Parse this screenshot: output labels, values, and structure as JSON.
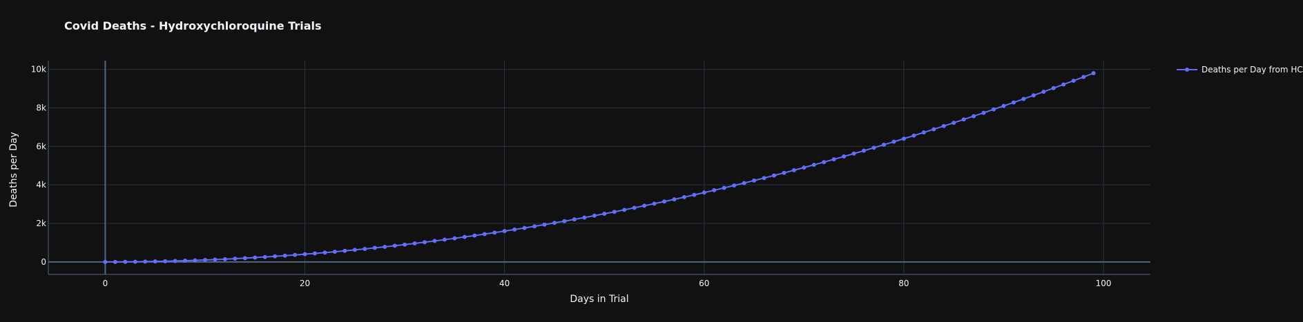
{
  "chart_data": {
    "type": "line",
    "title": "Covid Deaths - Hydroxychloroquine Trials",
    "xlabel": "Days in Trial",
    "ylabel": "Deaths per Day",
    "xlim": [
      -5.7,
      104.7
    ],
    "ylim": [
      -650,
      10450
    ],
    "x_ticks": [
      0,
      20,
      40,
      60,
      80,
      100
    ],
    "x_tick_labels": [
      "0",
      "20",
      "40",
      "60",
      "80",
      "100"
    ],
    "y_ticks": [
      0,
      2000,
      4000,
      6000,
      8000,
      10000
    ],
    "y_tick_labels": [
      "0",
      "2k",
      "4k",
      "6k",
      "8k",
      "10k"
    ],
    "grid": true,
    "legend_position": "top-right",
    "series": [
      {
        "name": "Deaths per Day from HCQ",
        "color": "#636efa",
        "mode": "lines+markers",
        "x": [
          0,
          1,
          2,
          3,
          4,
          5,
          6,
          7,
          8,
          9,
          10,
          11,
          12,
          13,
          14,
          15,
          16,
          17,
          18,
          19,
          20,
          21,
          22,
          23,
          24,
          25,
          26,
          27,
          28,
          29,
          30,
          31,
          32,
          33,
          34,
          35,
          36,
          37,
          38,
          39,
          40,
          41,
          42,
          43,
          44,
          45,
          46,
          47,
          48,
          49,
          50,
          51,
          52,
          53,
          54,
          55,
          56,
          57,
          58,
          59,
          60,
          61,
          62,
          63,
          64,
          65,
          66,
          67,
          68,
          69,
          70,
          71,
          72,
          73,
          74,
          75,
          76,
          77,
          78,
          79,
          80,
          81,
          82,
          83,
          84,
          85,
          86,
          87,
          88,
          89,
          90,
          91,
          92,
          93,
          94,
          95,
          96,
          97,
          98,
          99
        ],
        "y": [
          0,
          1,
          4,
          9,
          16,
          25,
          36,
          49,
          64,
          81,
          100,
          121,
          144,
          169,
          196,
          225,
          256,
          289,
          324,
          361,
          400,
          441,
          484,
          529,
          576,
          625,
          676,
          729,
          784,
          841,
          900,
          961,
          1024,
          1089,
          1156,
          1225,
          1296,
          1369,
          1444,
          1521,
          1600,
          1681,
          1764,
          1849,
          1936,
          2025,
          2116,
          2209,
          2304,
          2401,
          2500,
          2601,
          2704,
          2809,
          2916,
          3025,
          3136,
          3249,
          3364,
          3481,
          3600,
          3721,
          3844,
          3969,
          4096,
          4225,
          4356,
          4489,
          4624,
          4761,
          4900,
          5041,
          5184,
          5329,
          5476,
          5625,
          5776,
          5929,
          6084,
          6241,
          6400,
          6561,
          6724,
          6889,
          7056,
          7225,
          7396,
          7569,
          7744,
          7921,
          8100,
          8281,
          8464,
          8649,
          8836,
          9025,
          9216,
          9409,
          9604,
          9801
        ]
      }
    ]
  }
}
